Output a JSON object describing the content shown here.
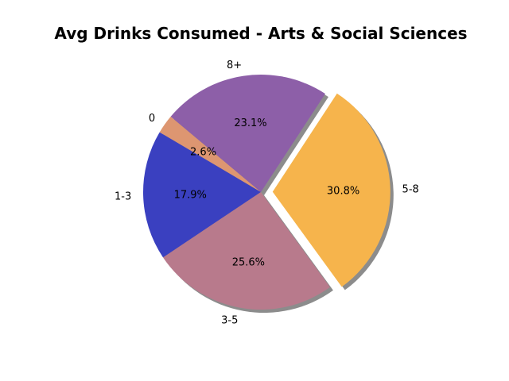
{
  "chart_data": {
    "type": "pie",
    "title": "Avg Drinks Consumed - Arts & Social Sciences",
    "categories": [
      "0",
      "1-3",
      "3-5",
      "5-8",
      "8+"
    ],
    "values": [
      2.6,
      17.9,
      25.6,
      30.8,
      23.1
    ],
    "percent_labels": [
      "2.6%",
      "17.9%",
      "25.6%",
      "30.8%",
      "23.1%"
    ],
    "colors": [
      "#dd9671",
      "#3a40c0",
      "#b87a8c",
      "#f6b44c",
      "#8d5fa8"
    ],
    "explode": [
      0,
      0,
      0,
      0.1,
      0
    ],
    "shadow": true,
    "start_angle": 140,
    "direction": "counterclockwise"
  }
}
